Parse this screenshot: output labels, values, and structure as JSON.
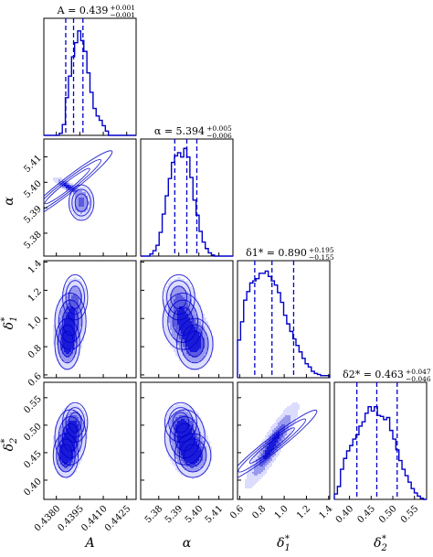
{
  "chart_data": {
    "type": "corner",
    "color": "#0000cc",
    "fill_levels": [
      "#dcdcff",
      "#9999ee",
      "#5b5be0",
      "#1a1ad9"
    ],
    "parameters": [
      {
        "label": "A",
        "sub": "",
        "sup": "",
        "lim": [
          0.4372,
          0.4431
        ],
        "ticks": [
          "0.4380",
          "0.4395",
          "0.4410",
          "0.4425"
        ],
        "tick_values": [
          0.438,
          0.4395,
          0.441,
          0.4425
        ],
        "title": {
          "prefix": "A = 0.439",
          "plus": "+0.001",
          "minus": "−0.001"
        },
        "quantiles": [
          0.4386,
          0.4391,
          0.4397
        ],
        "hist": [
          0,
          0,
          0,
          0,
          0,
          0.02,
          0.1,
          0.35,
          0.55,
          0.73,
          0.86,
          0.97,
          0.88,
          0.78,
          0.58,
          0.4,
          0.25,
          0.18,
          0.14,
          0.09,
          0.04,
          0.0,
          0,
          0,
          0,
          0,
          0,
          0,
          0,
          0
        ]
      },
      {
        "label": "α",
        "sub": "",
        "sup": "",
        "lim": [
          5.371,
          5.417
        ],
        "ticks": [
          "5.38",
          "5.39",
          "5.40",
          "5.41"
        ],
        "tick_values": [
          5.38,
          5.39,
          5.4,
          5.41
        ],
        "title": {
          "prefix": "α = 5.394",
          "plus": "+0.005",
          "minus": "−0.006"
        },
        "quantiles": [
          5.388,
          5.394,
          5.399
        ],
        "hist": [
          0,
          0,
          0,
          0.02,
          0.05,
          0.1,
          0.22,
          0.39,
          0.56,
          0.72,
          0.87,
          0.93,
          0.96,
          0.92,
          1.0,
          0.92,
          0.73,
          0.52,
          0.38,
          0.23,
          0.13,
          0.07,
          0.03,
          0.01,
          0,
          0,
          0,
          0,
          0,
          0
        ]
      },
      {
        "label": "δ",
        "sub": "1",
        "sup": "*",
        "lim": [
          0.58,
          1.41
        ],
        "ticks": [
          "0.6",
          "0.8",
          "1.0",
          "1.2",
          "1.4"
        ],
        "tick_values": [
          0.6,
          0.8,
          1.0,
          1.2,
          1.4
        ],
        "title": {
          "prefix": "δ1* = 0.890",
          "plus": "+0.195",
          "minus": "−0.155"
        },
        "quantiles": [
          0.735,
          0.89,
          1.085
        ],
        "hist": [
          0.35,
          0.52,
          0.72,
          0.8,
          0.88,
          0.9,
          0.92,
          0.97,
          0.97,
          0.99,
          0.94,
          0.9,
          0.86,
          0.79,
          0.7,
          0.58,
          0.5,
          0.43,
          0.36,
          0.3,
          0.24,
          0.18,
          0.13,
          0.1,
          0.06,
          0.04,
          0.03,
          0.02,
          0.02,
          0.02
        ]
      },
      {
        "label": "δ",
        "sub": "2",
        "sup": "*",
        "lim": [
          0.365,
          0.578
        ],
        "ticks": [
          "0.40",
          "0.45",
          "0.50",
          "0.55"
        ],
        "tick_values": [
          0.4,
          0.45,
          0.5,
          0.55
        ],
        "title": {
          "prefix": "δ2* = 0.463",
          "plus": "+0.047",
          "minus": "−0.046"
        },
        "quantiles": [
          0.417,
          0.463,
          0.51
        ],
        "hist": [
          0.05,
          0.12,
          0.28,
          0.38,
          0.45,
          0.5,
          0.56,
          0.6,
          0.68,
          0.72,
          0.8,
          0.86,
          0.82,
          0.86,
          0.78,
          0.77,
          0.74,
          0.76,
          0.64,
          0.56,
          0.46,
          0.36,
          0.28,
          0.22,
          0.16,
          0.1,
          0.06,
          0.03,
          0.01,
          0
        ]
      }
    ],
    "panels_2d": [
      {
        "row": 1,
        "col": 0,
        "blobs": [
          {
            "cx": 0.4387,
            "cy": 5.3985,
            "sx": 0.00045,
            "sy": 0.0045,
            "w": 1.0,
            "rot": -0.3
          },
          {
            "cx": 0.4396,
            "cy": 5.392,
            "sx": 0.0004,
            "sy": 0.0035,
            "w": 0.7,
            "rot": 0
          }
        ]
      },
      {
        "row": 2,
        "col": 0,
        "blobs": [
          {
            "cx": 0.4387,
            "cy": 0.82,
            "sx": 0.0004,
            "sy": 0.09,
            "w": 1.0,
            "rot": 0
          },
          {
            "cx": 0.4389,
            "cy": 0.98,
            "sx": 0.0005,
            "sy": 0.1,
            "w": 0.85,
            "rot": 0
          },
          {
            "cx": 0.4392,
            "cy": 1.15,
            "sx": 0.0004,
            "sy": 0.08,
            "w": 0.5,
            "rot": 0
          }
        ]
      },
      {
        "row": 2,
        "col": 1,
        "blobs": [
          {
            "cx": 5.398,
            "cy": 0.82,
            "sx": 0.0045,
            "sy": 0.09,
            "w": 1.0,
            "rot": 0
          },
          {
            "cx": 5.392,
            "cy": 0.98,
            "sx": 0.005,
            "sy": 0.1,
            "w": 0.85,
            "rot": 0
          },
          {
            "cx": 5.39,
            "cy": 1.15,
            "sx": 0.004,
            "sy": 0.08,
            "w": 0.5,
            "rot": 0
          }
        ]
      },
      {
        "row": 3,
        "col": 0,
        "blobs": [
          {
            "cx": 0.4386,
            "cy": 0.445,
            "sx": 0.0004,
            "sy": 0.02,
            "w": 1.0,
            "rot": 0
          },
          {
            "cx": 0.4389,
            "cy": 0.478,
            "sx": 0.0005,
            "sy": 0.025,
            "w": 0.85,
            "rot": 0
          },
          {
            "cx": 0.4392,
            "cy": 0.505,
            "sx": 0.0004,
            "sy": 0.018,
            "w": 0.5,
            "rot": 0
          }
        ]
      },
      {
        "row": 3,
        "col": 1,
        "blobs": [
          {
            "cx": 5.397,
            "cy": 0.445,
            "sx": 0.0045,
            "sy": 0.02,
            "w": 1.0,
            "rot": 0
          },
          {
            "cx": 5.393,
            "cy": 0.478,
            "sx": 0.005,
            "sy": 0.025,
            "w": 0.85,
            "rot": 0
          },
          {
            "cx": 5.391,
            "cy": 0.505,
            "sx": 0.004,
            "sy": 0.018,
            "w": 0.5,
            "rot": 0
          }
        ]
      },
      {
        "row": 3,
        "col": 2,
        "blobs": [
          {
            "cx": 0.89,
            "cy": 0.463,
            "sx": 0.2,
            "sy": 0.046,
            "w": 1.0,
            "rot": 0.975
          }
        ]
      }
    ]
  }
}
